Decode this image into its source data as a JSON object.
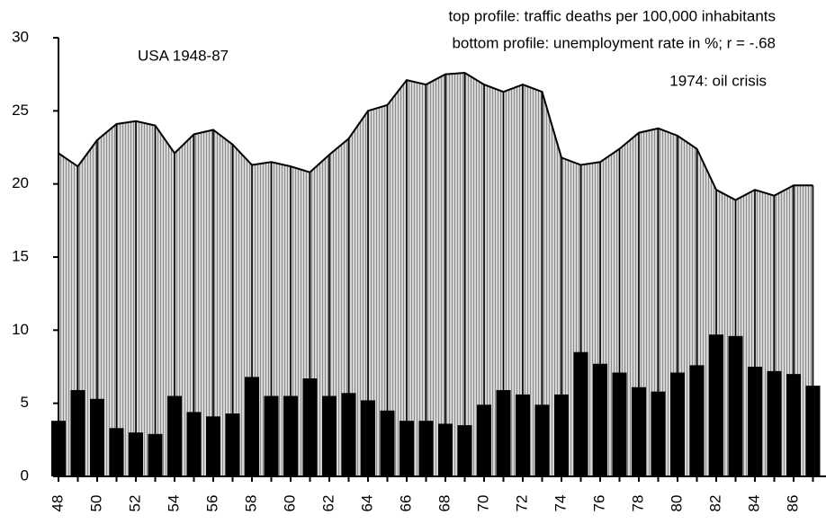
{
  "chart_data": {
    "type": "area-bar",
    "annotations": [
      "top profile: traffic deaths per 100,000 inhabitants",
      "bottom profile: unemployment rate in %; r = -.68",
      "USA 1948-87",
      "1974: oil crisis"
    ],
    "categories": [
      "48",
      null,
      "50",
      null,
      "52",
      null,
      "54",
      null,
      "56",
      null,
      "58",
      null,
      "60",
      null,
      "62",
      null,
      "64",
      null,
      "66",
      null,
      "68",
      null,
      "70",
      null,
      "72",
      null,
      "74",
      null,
      "76",
      null,
      "78",
      null,
      "80",
      null,
      "82",
      null,
      "84",
      null,
      "86",
      null
    ],
    "series": [
      {
        "name": "traffic deaths per 100,000 inhabitants",
        "color": "#b4b4b4",
        "values": [
          22.1,
          21.2,
          23.0,
          24.1,
          24.3,
          24.0,
          22.1,
          23.4,
          23.7,
          22.7,
          21.3,
          21.5,
          21.2,
          20.8,
          22.0,
          23.1,
          25.0,
          25.4,
          27.1,
          26.8,
          27.5,
          27.6,
          26.8,
          26.3,
          26.8,
          26.3,
          21.8,
          21.3,
          21.5,
          22.4,
          23.5,
          23.8,
          23.3,
          22.4,
          19.6,
          18.9,
          19.6,
          19.2,
          19.9,
          19.9
        ]
      },
      {
        "name": "unemployment rate in %",
        "color": "#000000",
        "values": [
          3.8,
          5.9,
          5.3,
          3.3,
          3.0,
          2.9,
          5.5,
          4.4,
          4.1,
          4.3,
          6.8,
          5.5,
          5.5,
          6.7,
          5.5,
          5.7,
          5.2,
          4.5,
          3.8,
          3.8,
          3.6,
          3.5,
          4.9,
          5.9,
          5.6,
          4.9,
          5.6,
          8.5,
          7.7,
          7.1,
          6.1,
          5.8,
          7.1,
          7.6,
          9.7,
          9.6,
          7.5,
          7.2,
          7.0,
          6.2
        ]
      }
    ],
    "ylim": [
      0,
      30
    ],
    "yticks": [
      0,
      5,
      10,
      15,
      20,
      25,
      30
    ]
  }
}
